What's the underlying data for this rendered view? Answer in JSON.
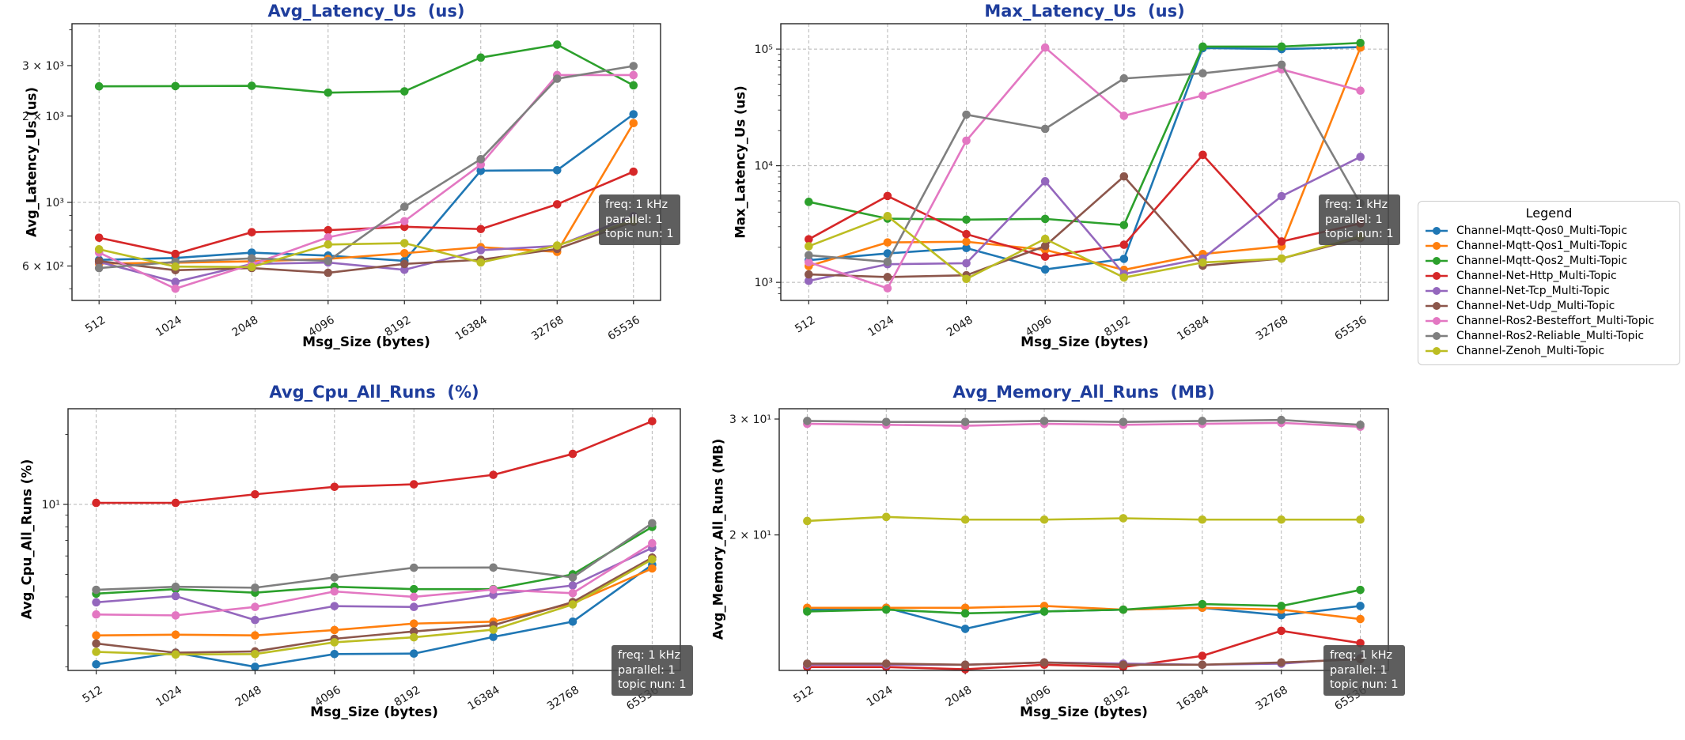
{
  "figure": {
    "background": "#ffffff",
    "title_color": "#1e3d9c",
    "grid_color": "#b5b5b5",
    "spine_color": "#262626",
    "annotation_bg": "#484848",
    "annotation_text_color": "#ffffff"
  },
  "legend": {
    "title": "Legend",
    "entries": [
      {
        "label": "Channel-Mqtt-Qos0_Multi-Topic",
        "color": "#1f77b4"
      },
      {
        "label": "Channel-Mqtt-Qos1_Multi-Topic",
        "color": "#ff7f0e"
      },
      {
        "label": "Channel-Mqtt-Qos2_Multi-Topic",
        "color": "#2ca02c"
      },
      {
        "label": "Channel-Net-Http_Multi-Topic",
        "color": "#d62728"
      },
      {
        "label": "Channel-Net-Tcp_Multi-Topic",
        "color": "#9467bd"
      },
      {
        "label": "Channel-Net-Udp_Multi-Topic",
        "color": "#8c564b"
      },
      {
        "label": "Channel-Ros2-Besteffort_Multi-Topic",
        "color": "#e377c2"
      },
      {
        "label": "Channel-Ros2-Reliable_Multi-Topic",
        "color": "#7f7f7f"
      },
      {
        "label": "Channel-Zenoh_Multi-Topic",
        "color": "#bcbd22"
      }
    ]
  },
  "chart_data": [
    {
      "type": "line",
      "title": "Avg_Latency_Us  (us)",
      "ylabel": "Avg_Latency_Us (us)",
      "xlabel": "Msg_Size (bytes)",
      "x_scale": "log2",
      "y_scale": "log10",
      "grid": true,
      "x_categories": [
        "512",
        "1024",
        "2048",
        "4096",
        "8192",
        "16384",
        "32768",
        "65536"
      ],
      "ylim": [
        455,
        4200
      ],
      "y_ticks": [
        {
          "v": 600,
          "label": "6 × 10²"
        },
        {
          "v": 1000,
          "label": "10³"
        },
        {
          "v": 2000,
          "label": "2 × 10³"
        },
        {
          "v": 3000,
          "label": "3 × 10³"
        }
      ],
      "y_gridlines": [
        1000
      ],
      "annotation": [
        "freq: 1 kHz",
        "parallel: 1",
        "topic nun: 1"
      ],
      "series": [
        {
          "name": "Channel-Mqtt-Qos0_Multi-Topic",
          "values": [
            630,
            640,
            668,
            652,
            625,
            1290,
            1295,
            2030
          ]
        },
        {
          "name": "Channel-Mqtt-Qos1_Multi-Topic",
          "values": [
            612,
            616,
            623,
            635,
            665,
            698,
            672,
            1890
          ]
        },
        {
          "name": "Channel-Mqtt-Qos2_Multi-Topic",
          "values": [
            2540,
            2545,
            2550,
            2415,
            2440,
            3200,
            3550,
            2560
          ]
        },
        {
          "name": "Channel-Net-Http_Multi-Topic",
          "values": [
            753,
            661,
            787,
            800,
            822,
            807,
            985,
            1280
          ]
        },
        {
          "name": "Channel-Net-Tcp_Multi-Topic",
          "values": [
            620,
            528,
            610,
            617,
            582,
            681,
            705,
            895
          ]
        },
        {
          "name": "Channel-Net-Udp_Multi-Topic",
          "values": [
            624,
            580,
            590,
            568,
            610,
            631,
            688,
            855
          ]
        },
        {
          "name": "Channel-Ros2-Besteffort_Multi-Topic",
          "values": [
            668,
            500,
            608,
            755,
            860,
            1355,
            2780,
            2780
          ]
        },
        {
          "name": "Channel-Ros2-Reliable_Multi-Topic",
          "values": [
            590,
            620,
            638,
            625,
            965,
            1415,
            2700,
            2990
          ]
        },
        {
          "name": "Channel-Zenoh_Multi-Topic",
          "values": [
            686,
            597,
            595,
            713,
            721,
            617,
            707,
            865
          ]
        }
      ]
    },
    {
      "type": "line",
      "title": "Max_Latency_Us  (us)",
      "ylabel": "Max_Latency_Us (us)",
      "xlabel": "Msg_Size (bytes)",
      "x_scale": "log2",
      "y_scale": "log10",
      "grid": true,
      "x_categories": [
        "512",
        "1024",
        "2048",
        "4096",
        "8192",
        "16384",
        "32768",
        "65536"
      ],
      "ylim": [
        700,
        165000
      ],
      "y_ticks": [
        {
          "v": 1000,
          "label": "10³"
        },
        {
          "v": 10000,
          "label": "10⁴"
        },
        {
          "v": 100000,
          "label": "10⁵"
        }
      ],
      "y_gridlines": [
        1000,
        10000,
        100000
      ],
      "annotation": [
        "freq: 1 kHz",
        "parallel: 1",
        "topic nun: 1"
      ],
      "series": [
        {
          "name": "Channel-Mqtt-Qos0_Multi-Topic",
          "values": [
            1550,
            1770,
            1970,
            1290,
            1590,
            102000,
            100000,
            104000
          ]
        },
        {
          "name": "Channel-Mqtt-Qos1_Multi-Topic",
          "values": [
            1380,
            2200,
            2230,
            1900,
            1280,
            1750,
            2040,
            103000
          ]
        },
        {
          "name": "Channel-Mqtt-Qos2_Multi-Topic",
          "values": [
            4900,
            3520,
            3450,
            3500,
            3100,
            105000,
            105000,
            113000
          ]
        },
        {
          "name": "Channel-Net-Http_Multi-Topic",
          "values": [
            2340,
            5500,
            2590,
            1660,
            2100,
            12400,
            2240,
            3200
          ]
        },
        {
          "name": "Channel-Net-Tcp_Multi-Topic",
          "values": [
            1030,
            1430,
            1460,
            7350,
            1180,
            1600,
            5480,
            11900
          ]
        },
        {
          "name": "Channel-Net-Udp_Multi-Topic",
          "values": [
            1170,
            1110,
            1150,
            2050,
            8100,
            1390,
            1600,
            2400
          ]
        },
        {
          "name": "Channel-Ros2-Besteffort_Multi-Topic",
          "values": [
            1490,
            890,
            16400,
            103000,
            26800,
            40000,
            67000,
            44000
          ]
        },
        {
          "name": "Channel-Ros2-Reliable_Multi-Topic",
          "values": [
            1710,
            1500,
            27400,
            20700,
            56000,
            62000,
            73500,
            4750
          ]
        },
        {
          "name": "Channel-Zenoh_Multi-Topic",
          "values": [
            2040,
            3700,
            1070,
            2360,
            1100,
            1480,
            1600,
            2480
          ]
        }
      ]
    },
    {
      "type": "line",
      "title": "Avg_Cpu_All_Runs  (%)",
      "ylabel": "Avg_Cpu_All_Runs (%)",
      "xlabel": "Msg_Size (bytes)",
      "x_scale": "log2",
      "y_scale": "log10",
      "grid": true,
      "x_categories": [
        "512",
        "1024",
        "2048",
        "4096",
        "8192",
        "16384",
        "32768",
        "65536"
      ],
      "ylim": [
        1.93,
        25.8
      ],
      "y_ticks": [
        {
          "v": 10,
          "label": "10¹"
        }
      ],
      "y_gridlines": [
        10
      ],
      "annotation": [
        "freq: 1 kHz",
        "parallel: 1",
        "topic nun: 1"
      ],
      "series": [
        {
          "name": "Channel-Mqtt-Qos0_Multi-Topic",
          "values": [
            2.05,
            2.3,
            2.0,
            2.27,
            2.28,
            2.69,
            3.13,
            5.5
          ]
        },
        {
          "name": "Channel-Mqtt-Qos1_Multi-Topic",
          "values": [
            2.73,
            2.75,
            2.73,
            2.88,
            3.07,
            3.13,
            3.75,
            5.3
          ]
        },
        {
          "name": "Channel-Mqtt-Qos2_Multi-Topic",
          "values": [
            4.13,
            4.32,
            4.17,
            4.42,
            4.32,
            4.32,
            5.0,
            8.0
          ]
        },
        {
          "name": "Channel-Net-Http_Multi-Topic",
          "values": [
            10.15,
            10.15,
            11.05,
            11.9,
            12.2,
            13.4,
            16.5,
            22.8
          ]
        },
        {
          "name": "Channel-Net-Tcp_Multi-Topic",
          "values": [
            3.79,
            4.03,
            3.18,
            3.65,
            3.62,
            4.08,
            4.48,
            6.5
          ]
        },
        {
          "name": "Channel-Net-Udp_Multi-Topic",
          "values": [
            2.52,
            2.3,
            2.33,
            2.64,
            2.84,
            3.02,
            3.8,
            5.9
          ]
        },
        {
          "name": "Channel-Ros2-Besteffort_Multi-Topic",
          "values": [
            3.36,
            3.33,
            3.62,
            4.22,
            4.0,
            4.3,
            4.15,
            6.8
          ]
        },
        {
          "name": "Channel-Ros2-Reliable_Multi-Topic",
          "values": [
            4.29,
            4.42,
            4.38,
            4.85,
            5.34,
            5.35,
            4.85,
            8.3
          ]
        },
        {
          "name": "Channel-Zenoh_Multi-Topic",
          "values": [
            2.32,
            2.26,
            2.27,
            2.55,
            2.68,
            2.89,
            3.71,
            5.8
          ]
        }
      ]
    },
    {
      "type": "line",
      "title": "Avg_Memory_All_Runs  (MB)",
      "ylabel": "Avg_Memory_All_Runs (MB)",
      "xlabel": "Msg_Size (bytes)",
      "x_scale": "log2",
      "y_scale": "log10",
      "grid": true,
      "x_categories": [
        "512",
        "1024",
        "2048",
        "4096",
        "8192",
        "16384",
        "32768",
        "65536"
      ],
      "ylim": [
        12.45,
        31.1
      ],
      "y_ticks": [
        {
          "v": 20,
          "label": "2 × 10¹"
        },
        {
          "v": 30,
          "label": "3 × 10¹"
        }
      ],
      "y_gridlines": [],
      "annotation": [
        "freq: 1 kHz",
        "parallel: 1",
        "topic nun: 1"
      ],
      "series": [
        {
          "name": "Channel-Mqtt-Qos0_Multi-Topic",
          "values": [
            15.4,
            15.5,
            14.4,
            15.3,
            15.4,
            15.5,
            15.1,
            15.6
          ]
        },
        {
          "name": "Channel-Mqtt-Qos1_Multi-Topic",
          "values": [
            15.5,
            15.5,
            15.5,
            15.6,
            15.4,
            15.5,
            15.4,
            14.9
          ]
        },
        {
          "name": "Channel-Mqtt-Qos2_Multi-Topic",
          "values": [
            15.3,
            15.4,
            15.2,
            15.3,
            15.4,
            15.7,
            15.6,
            16.5
          ]
        },
        {
          "name": "Channel-Net-Http_Multi-Topic",
          "values": [
            12.6,
            12.6,
            12.5,
            12.7,
            12.6,
            13.1,
            14.3,
            13.7
          ]
        },
        {
          "name": "Channel-Net-Tcp_Multi-Topic",
          "values": [
            12.7,
            12.7,
            12.7,
            12.8,
            12.75,
            12.7,
            12.75,
            13.0
          ]
        },
        {
          "name": "Channel-Net-Udp_Multi-Topic",
          "values": [
            12.75,
            12.75,
            12.7,
            12.8,
            12.7,
            12.7,
            12.8,
            12.95
          ]
        },
        {
          "name": "Channel-Ros2-Besteffort_Multi-Topic",
          "values": [
            29.5,
            29.4,
            29.3,
            29.5,
            29.4,
            29.5,
            29.6,
            29.2
          ]
        },
        {
          "name": "Channel-Ros2-Reliable_Multi-Topic",
          "values": [
            29.8,
            29.7,
            29.7,
            29.8,
            29.7,
            29.8,
            29.9,
            29.4
          ]
        },
        {
          "name": "Channel-Zenoh_Multi-Topic",
          "values": [
            21.0,
            21.3,
            21.1,
            21.1,
            21.2,
            21.1,
            21.1,
            21.1
          ]
        }
      ]
    }
  ]
}
